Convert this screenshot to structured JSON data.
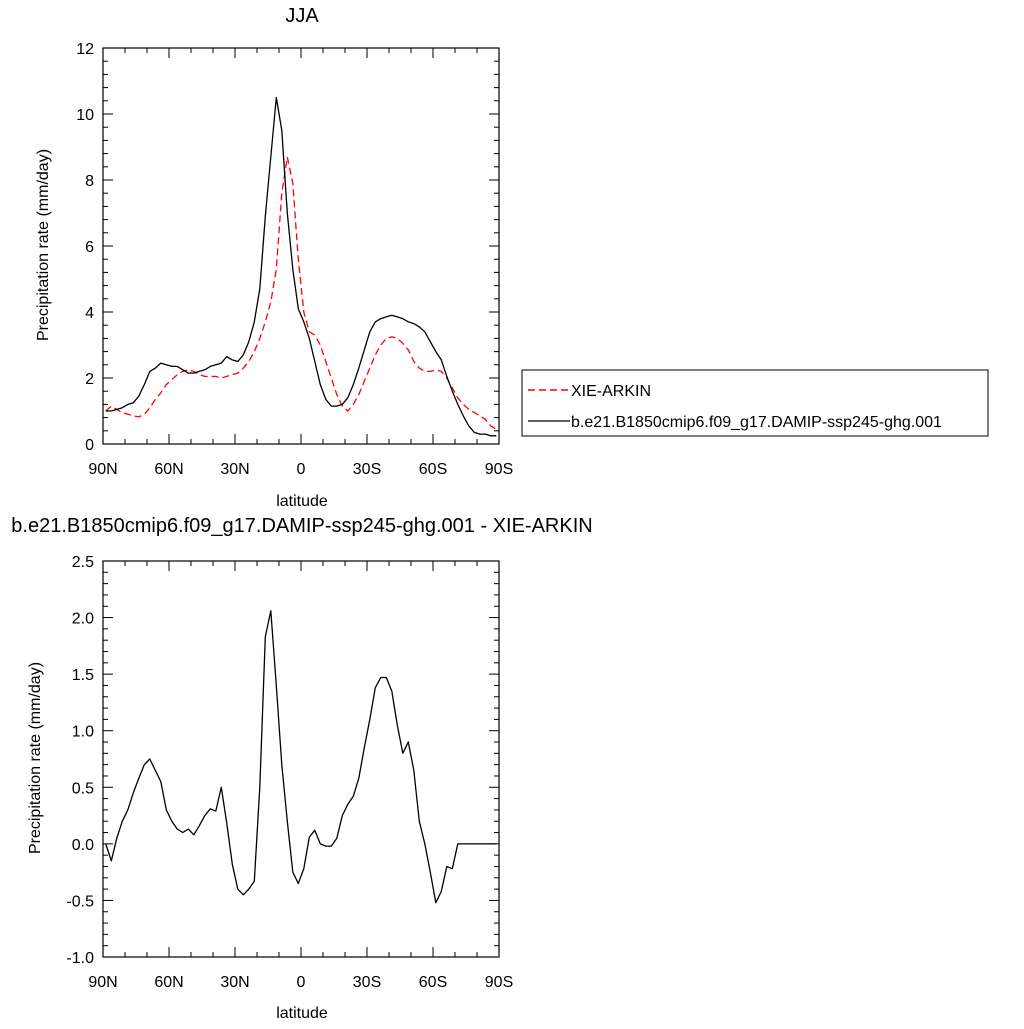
{
  "chart_data": [
    {
      "type": "line",
      "title": "JJA",
      "xlabel": "latitude",
      "ylabel": "Precipitation rate (mm/day)",
      "xlim": [
        -90,
        90
      ],
      "ylim": [
        0,
        12
      ],
      "x_ticks": [
        -90,
        -60,
        -30,
        0,
        30,
        60,
        90
      ],
      "x_tick_labels": [
        "90N",
        "60N",
        "30N",
        "0",
        "30S",
        "60S",
        "90S"
      ],
      "y_ticks": [
        0,
        2,
        4,
        6,
        8,
        10,
        12
      ],
      "y_tick_labels": [
        "0",
        "2",
        "4",
        "6",
        "8",
        "10",
        "12"
      ],
      "legend_position": "right",
      "series": [
        {
          "name": "XIE-ARKIN",
          "color": "#ff0000",
          "dash": "dashed",
          "x": [
            -88.75,
            -86.25,
            -83.75,
            -81.25,
            -78.75,
            -76.25,
            -73.75,
            -71.25,
            -68.75,
            -66.25,
            -63.75,
            -61.25,
            -58.75,
            -56.25,
            -53.75,
            -51.25,
            -48.75,
            -46.25,
            -43.75,
            -41.25,
            -38.75,
            -36.25,
            -33.75,
            -31.25,
            -28.75,
            -26.25,
            -23.75,
            -21.25,
            -18.75,
            -16.25,
            -13.75,
            -11.25,
            -8.75,
            -6.25,
            -3.75,
            -1.25,
            1.25,
            3.75,
            6.25,
            8.75,
            11.25,
            13.75,
            16.25,
            18.75,
            21.25,
            23.75,
            26.25,
            28.75,
            31.25,
            33.75,
            36.25,
            38.75,
            41.25,
            43.75,
            46.25,
            48.75,
            51.25,
            53.75,
            56.25,
            58.75,
            61.25,
            63.75,
            66.25,
            68.75,
            71.25,
            73.75,
            76.25,
            78.75,
            81.25,
            83.75,
            86.25,
            88.75
          ],
          "y": [
            1.0,
            1.15,
            1.05,
            0.95,
            0.9,
            0.85,
            0.82,
            0.9,
            1.1,
            1.35,
            1.55,
            1.8,
            1.95,
            2.1,
            2.2,
            2.25,
            2.2,
            2.1,
            2.05,
            2.05,
            2.05,
            2.0,
            2.05,
            2.1,
            2.15,
            2.3,
            2.5,
            2.8,
            3.2,
            3.7,
            4.3,
            5.3,
            7.6,
            8.7,
            7.9,
            5.6,
            4.0,
            3.4,
            3.3,
            3.0,
            2.5,
            2.0,
            1.5,
            1.15,
            1.0,
            1.2,
            1.5,
            1.9,
            2.3,
            2.7,
            3.0,
            3.2,
            3.25,
            3.2,
            3.05,
            2.85,
            2.5,
            2.3,
            2.2,
            2.2,
            2.25,
            2.2,
            2.0,
            1.7,
            1.4,
            1.2,
            1.05,
            0.95,
            0.85,
            0.75,
            0.55,
            0.45
          ]
        },
        {
          "name": "b.e21.B1850cmip6.f09_g17.DAMIP-ssp245-ghg.001",
          "color": "#000000",
          "dash": "solid",
          "x": [
            -88.75,
            -86.25,
            -83.75,
            -81.25,
            -78.75,
            -76.25,
            -73.75,
            -71.25,
            -68.75,
            -66.25,
            -63.75,
            -61.25,
            -58.75,
            -56.25,
            -53.75,
            -51.25,
            -48.75,
            -46.25,
            -43.75,
            -41.25,
            -38.75,
            -36.25,
            -33.75,
            -31.25,
            -28.75,
            -26.25,
            -23.75,
            -21.25,
            -18.75,
            -16.25,
            -13.75,
            -11.25,
            -8.75,
            -6.25,
            -3.75,
            -1.25,
            1.25,
            3.75,
            6.25,
            8.75,
            11.25,
            13.75,
            16.25,
            18.75,
            21.25,
            23.75,
            26.25,
            28.75,
            31.25,
            33.75,
            36.25,
            38.75,
            41.25,
            43.75,
            46.25,
            48.75,
            51.25,
            53.75,
            56.25,
            58.75,
            61.25,
            63.75,
            66.25,
            68.75,
            71.25,
            73.75,
            76.25,
            78.75,
            81.25,
            83.75,
            86.25,
            88.75
          ],
          "y": [
            1.0,
            1.0,
            1.05,
            1.1,
            1.2,
            1.25,
            1.45,
            1.8,
            2.2,
            2.3,
            2.45,
            2.4,
            2.35,
            2.35,
            2.25,
            2.15,
            2.15,
            2.2,
            2.25,
            2.35,
            2.4,
            2.45,
            2.65,
            2.55,
            2.5,
            2.7,
            3.1,
            3.7,
            4.7,
            6.9,
            8.7,
            10.5,
            9.5,
            7.0,
            5.3,
            4.1,
            3.7,
            3.2,
            2.5,
            1.8,
            1.35,
            1.15,
            1.15,
            1.2,
            1.4,
            1.8,
            2.3,
            2.85,
            3.4,
            3.7,
            3.8,
            3.85,
            3.9,
            3.85,
            3.8,
            3.7,
            3.65,
            3.55,
            3.4,
            3.1,
            2.8,
            2.55,
            2.05,
            1.6,
            1.2,
            0.85,
            0.55,
            0.35,
            0.3,
            0.3,
            0.25,
            0.25
          ]
        }
      ]
    },
    {
      "type": "line",
      "title": "b.e21.B1850cmip6.f09_g17.DAMIP-ssp245-ghg.001 - XIE-ARKIN",
      "xlabel": "latitude",
      "ylabel": "Precipitation rate (mm/day)",
      "xlim": [
        -90,
        90
      ],
      "ylim": [
        -1.0,
        2.5
      ],
      "x_ticks": [
        -90,
        -60,
        -30,
        0,
        30,
        60,
        90
      ],
      "x_tick_labels": [
        "90N",
        "60N",
        "30N",
        "0",
        "30S",
        "60S",
        "90S"
      ],
      "y_ticks": [
        -1.0,
        -0.5,
        0.0,
        0.5,
        1.0,
        1.5,
        2.0,
        2.5
      ],
      "y_tick_labels": [
        "-1.0",
        "-0.5",
        "0.0",
        "0.5",
        "1.0",
        "1.5",
        "2.0",
        "2.5"
      ],
      "series": [
        {
          "color": "#000000",
          "dash": "solid",
          "x": [
            -88.75,
            -86.25,
            -83.75,
            -81.25,
            -78.75,
            -76.25,
            -73.75,
            -71.25,
            -68.75,
            -66.25,
            -63.75,
            -61.25,
            -58.75,
            -56.25,
            -53.75,
            -51.25,
            -48.75,
            -46.25,
            -43.75,
            -41.25,
            -38.75,
            -36.25,
            -33.75,
            -31.25,
            -28.75,
            -26.25,
            -23.75,
            -21.25,
            -18.75,
            -16.25,
            -13.75,
            -11.25,
            -8.75,
            -6.25,
            -3.75,
            -1.25,
            1.25,
            3.75,
            6.25,
            8.75,
            11.25,
            13.75,
            16.25,
            18.75,
            21.25,
            23.75,
            26.25,
            28.75,
            31.25,
            33.75,
            36.25,
            38.75,
            41.25,
            43.75,
            46.25,
            48.75,
            51.25,
            53.75,
            56.25,
            58.75,
            61.25,
            63.75,
            66.25,
            68.75,
            71.25,
            73.75,
            76.25,
            78.75,
            81.25,
            83.75,
            86.25,
            88.75
          ],
          "y": [
            0.0,
            -0.15,
            0.05,
            0.2,
            0.3,
            0.45,
            0.58,
            0.7,
            0.75,
            0.65,
            0.55,
            0.3,
            0.2,
            0.13,
            0.1,
            0.13,
            0.08,
            0.16,
            0.25,
            0.31,
            0.29,
            0.5,
            0.18,
            -0.18,
            -0.4,
            -0.45,
            -0.4,
            -0.33,
            0.5,
            1.83,
            2.06,
            1.4,
            0.7,
            0.2,
            -0.25,
            -0.35,
            -0.22,
            0.06,
            0.12,
            0.0,
            -0.02,
            -0.02,
            0.05,
            0.25,
            0.35,
            0.42,
            0.58,
            0.85,
            1.1,
            1.38,
            1.47,
            1.47,
            1.35,
            1.05,
            0.8,
            0.9,
            0.65,
            0.2,
            0.0,
            -0.25,
            -0.52,
            -0.42,
            -0.2,
            -0.22,
            0.0,
            0.0,
            0.0,
            0.0,
            0.0,
            0.0,
            0.0,
            0.0
          ]
        }
      ]
    }
  ]
}
